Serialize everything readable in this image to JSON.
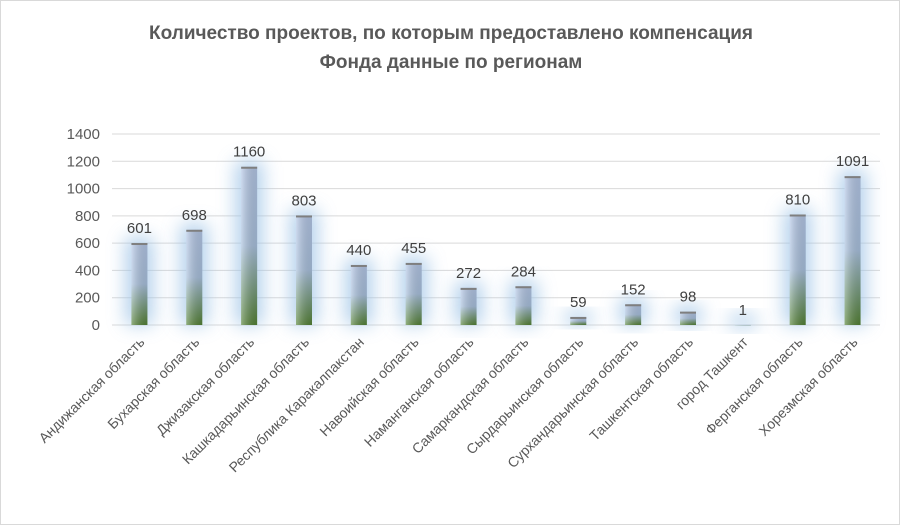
{
  "chart_data": {
    "type": "bar",
    "title": [
      "Количество проектов, по которым предоставлено компенсация",
      "Фонда данные по регионам"
    ],
    "categories": [
      "Андижанская область",
      "Бухарская область",
      "Джизакская область",
      "Кашкадарьинская область",
      "Республика Каракалпакстан",
      "Навоийская область",
      "Наманганская область",
      "Самаркандская область",
      "Сырдарьинская область",
      "Сурхандарьинская область",
      "Ташкентская область",
      "город Ташкент",
      "Ферганская область",
      "Хорезмская область"
    ],
    "values": [
      601,
      698,
      1160,
      803,
      440,
      455,
      272,
      284,
      59,
      152,
      98,
      1,
      810,
      1091
    ],
    "data_labels": [
      "601",
      "698",
      "1160",
      "803",
      "440",
      "455",
      "272",
      "284",
      "59",
      "152",
      "98",
      "1",
      "810",
      "1091"
    ],
    "ylim": [
      0,
      1400
    ],
    "yticks": [
      "0",
      "200",
      "400",
      "600",
      "800",
      "1000",
      "1200",
      "1400"
    ],
    "grid": true,
    "legend": "none",
    "colors": {
      "bar_top": "#b4c7e7",
      "bar_bottom": "#548235",
      "glow": "#9dc3e6",
      "grid": "#d9d9d9",
      "text": "#595959"
    }
  }
}
